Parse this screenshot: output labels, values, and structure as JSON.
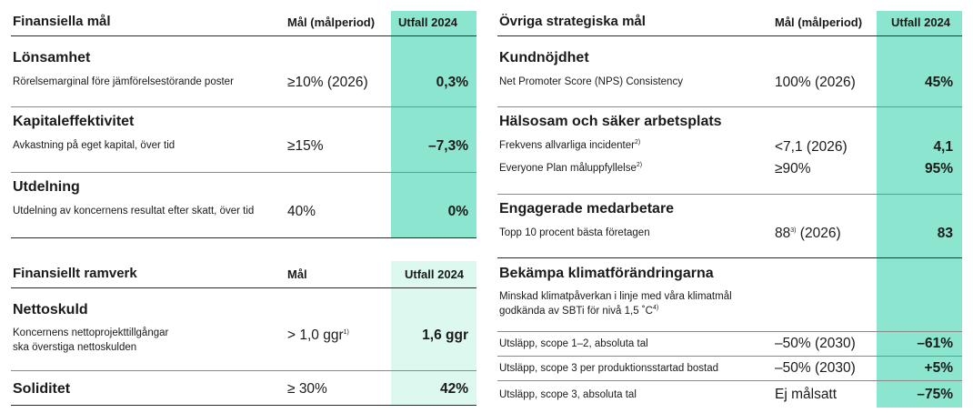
{
  "left": {
    "financial_goals": {
      "title": "Finansiella mål",
      "col_target": "Mål (målperiod)",
      "col_outcome": "Utfall 2024",
      "sections": [
        {
          "title": "Lönsamhet",
          "desc": "Rörelsemarginal före jämförelsestörande poster",
          "target": "≥10% (2026)",
          "outcome": "0,3%"
        },
        {
          "title": "Kapitaleffektivitet",
          "desc": "Avkastning på eget kapital, över tid",
          "target": "≥15%",
          "outcome": "–7,3%"
        },
        {
          "title": "Utdelning",
          "desc": "Utdelning av koncernens resultat efter skatt, över tid",
          "target": "40%",
          "outcome": "0%"
        }
      ]
    },
    "financial_framework": {
      "title": "Finansiellt ramverk",
      "col_target": "Mål",
      "col_outcome": "Utfall 2024",
      "net_debt": {
        "title": "Nettoskuld",
        "desc_line1": "Koncernens nettoprojekttillgångar",
        "desc_line2": "ska överstiga nettoskulden",
        "target": "> 1,0 ggr",
        "target_note": "1)",
        "outcome": "1,6 ggr"
      },
      "solidity": {
        "title": "Soliditet",
        "target": "≥ 30%",
        "outcome": "42%"
      }
    }
  },
  "right": {
    "title": "Övriga strategiska mål",
    "col_target": "Mål (målperiod)",
    "col_outcome": "Utfall 2024",
    "customer": {
      "title": "Kundnöjdhet",
      "desc": "Net Promoter Score (NPS) Consistency",
      "target": "100% (2026)",
      "outcome": "45%"
    },
    "health": {
      "title": "Hälsosam och säker arbetsplats",
      "rows": [
        {
          "desc": "Frekvens allvarliga incidenter",
          "note": "2)",
          "target": "<7,1 (2026)",
          "outcome": "4,1"
        },
        {
          "desc": "Everyone Plan måluppfyllelse",
          "note": "2)",
          "target": "≥90%",
          "outcome": "95%"
        }
      ]
    },
    "engaged": {
      "title": "Engagerade medarbetare",
      "desc": "Topp 10 procent bästa företagen",
      "target_value": "88",
      "target_note": "3)",
      "target_period": "(2026)",
      "outcome": "83"
    },
    "climate": {
      "title": "Bekämpa klimatförändringarna",
      "desc_line1": "Minskad klimatpåverkan i linje med våra klimatmål",
      "desc_line2": "godkända av SBTi för nivå 1,5 ˚C",
      "desc_note": "4)",
      "rows": [
        {
          "desc": "Utsläpp, scope 1–2, absoluta tal",
          "target": "–50% (2030)",
          "outcome": "–61%"
        },
        {
          "desc": "Utsläpp, scope 3 per produktionsstartad bostad",
          "target": "–50% (2030)",
          "outcome": "+5%"
        },
        {
          "desc": "Utsläpp, scope 3, absoluta tal",
          "target": "Ej målsatt",
          "outcome": "–75%"
        }
      ]
    }
  },
  "colors": {
    "outcome_fill": "#8ce6cf",
    "outcome_fill_light": "#dcf8ef"
  }
}
